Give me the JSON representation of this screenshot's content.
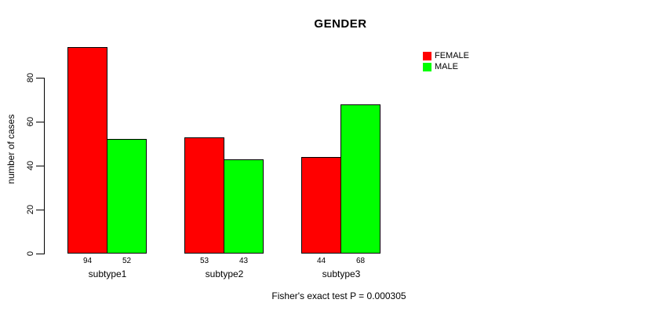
{
  "chart_data": {
    "type": "bar",
    "title": "GENDER",
    "ylabel": "number of cases",
    "xlabel": "",
    "categories": [
      "subtype1",
      "subtype2",
      "subtype3"
    ],
    "series": [
      {
        "name": "FEMALE",
        "color": "#FF0000",
        "values": [
          94,
          53,
          44
        ]
      },
      {
        "name": "MALE",
        "color": "#00FF00",
        "values": [
          52,
          43,
          68
        ]
      }
    ],
    "yticks": [
      0,
      20,
      40,
      60,
      80
    ],
    "ylim": [
      0,
      80
    ],
    "bar_value_labels": [
      [
        94,
        53,
        44
      ],
      [
        52,
        43,
        68
      ]
    ],
    "grid": false,
    "legend_position": "top-right",
    "annotation": "Fisher's exact test P = 0.000305"
  }
}
